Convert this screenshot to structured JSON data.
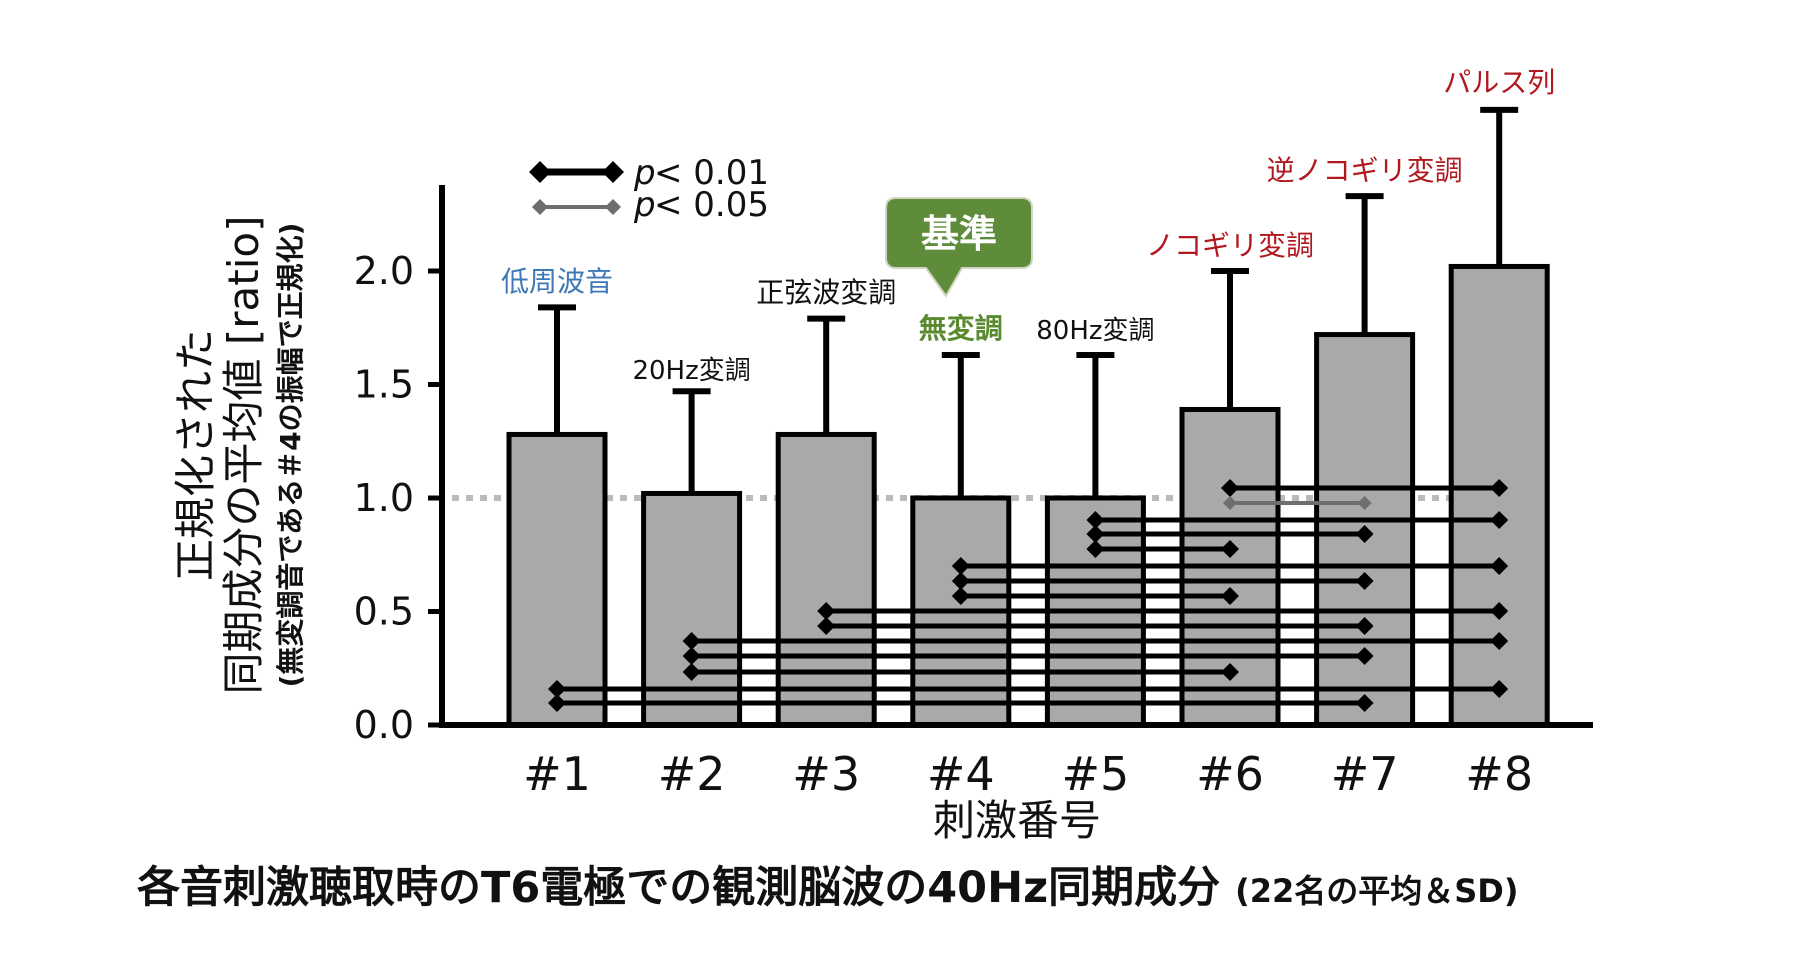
{
  "chart_data": {
    "type": "bar",
    "title": "各音刺激聴取時のT6電極での観測脳波の40Hz同期成分",
    "title_note": "(22名の平均＆SD)",
    "xlabel": "刺激番号",
    "ylabel_line1": "正規化された",
    "ylabel_line2": "同期成分の平均値 [ratio]",
    "ylabel_note": "(無変調音である＃4の振幅で正規化)",
    "ylim": [
      0,
      2.4
    ],
    "yticks": [
      "0.0",
      "0.5",
      "1.0",
      "1.5",
      "2.0"
    ],
    "reference_line": 1.0,
    "categories": [
      "#1",
      "#2",
      "#3",
      "#4",
      "#5",
      "#6",
      "#7",
      "#8"
    ],
    "values": [
      1.28,
      1.02,
      1.28,
      1.0,
      1.0,
      1.39,
      1.72,
      2.02
    ],
    "sd": [
      0.56,
      0.45,
      0.51,
      0.63,
      0.63,
      0.61,
      0.61,
      0.69
    ],
    "stimulus_labels": [
      "低周波音",
      "20Hz変調",
      "正弦波変調",
      "無変調",
      "80Hz変調",
      "ノコギリ変調",
      "逆ノコギリ変調",
      "パルス列"
    ],
    "label_colors": [
      "#3f78b8",
      "#111111",
      "#111111",
      "#5a8a30",
      "#111111",
      "#b0191f",
      "#b0191f",
      "#b0191f"
    ],
    "reference_callout": "基準",
    "legend": {
      "p01_prefix": "p",
      "p01_text": " < 0.01",
      "p05_prefix": "p",
      "p05_text": " < 0.05"
    },
    "significance": [
      {
        "from": 6,
        "to": 8,
        "level": "p<0.01"
      },
      {
        "from": 6,
        "to": 7,
        "level": "p<0.05"
      },
      {
        "from": 5,
        "to": 8,
        "level": "p<0.01"
      },
      {
        "from": 5,
        "to": 7,
        "level": "p<0.01"
      },
      {
        "from": 5,
        "to": 6,
        "level": "p<0.01"
      },
      {
        "from": 4,
        "to": 8,
        "level": "p<0.01"
      },
      {
        "from": 4,
        "to": 7,
        "level": "p<0.01"
      },
      {
        "from": 4,
        "to": 6,
        "level": "p<0.01"
      },
      {
        "from": 3,
        "to": 8,
        "level": "p<0.01"
      },
      {
        "from": 3,
        "to": 7,
        "level": "p<0.01"
      },
      {
        "from": 2,
        "to": 8,
        "level": "p<0.01"
      },
      {
        "from": 2,
        "to": 7,
        "level": "p<0.01"
      },
      {
        "from": 2,
        "to": 6,
        "level": "p<0.01"
      },
      {
        "from": 1,
        "to": 8,
        "level": "p<0.01"
      },
      {
        "from": 1,
        "to": 7,
        "level": "p<0.01"
      }
    ],
    "colors": {
      "bar_fill": "#a9a9a9",
      "bar_stroke": "#000000",
      "reference_line": "#bbbbbb",
      "callout_fill": "#5f8c3a",
      "p05_line": "#6e6e6e"
    }
  }
}
